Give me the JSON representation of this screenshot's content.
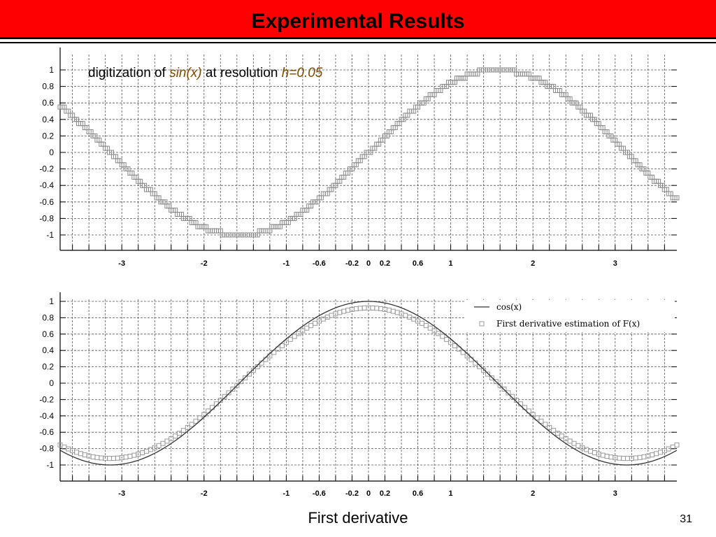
{
  "slide": {
    "title": "Experimental Results",
    "caption": "First derivative",
    "page_number": "31",
    "accent_color": "#ff0000"
  },
  "chart_data": [
    {
      "type": "line",
      "title": "",
      "annotation": {
        "prefix": "digitization of ",
        "func": "sin(x)",
        "middle": " at resolution ",
        "res": "h=0.05"
      },
      "xlabel": "",
      "ylabel": "",
      "xlim": [
        -3.75,
        3.75
      ],
      "ylim": [
        -1.2,
        1.2
      ],
      "x_ticks": [
        -3,
        -2,
        -1,
        -0.6,
        -0.2,
        0,
        0.2,
        0.6,
        1,
        2,
        3
      ],
      "x_tick_labels": [
        "-3",
        "-2",
        "-1",
        "-0.6",
        "-0.2",
        "0",
        "0.2",
        "0.6",
        "1",
        "2",
        "3"
      ],
      "y_ticks": [
        1,
        0.8,
        0.6,
        0.4,
        0.2,
        0,
        -0.2,
        -0.4,
        -0.6,
        -0.8,
        -1
      ],
      "y_tick_labels": [
        "1",
        "0.8",
        "0.6",
        "0.4",
        "0.2",
        "0",
        "-0.2",
        "-0.4",
        "-0.6",
        "-0.8",
        "-1"
      ],
      "grid": true,
      "series": [
        {
          "function": "sin(x)",
          "style": "step-squares",
          "step": 0.05,
          "x_range": [
            -3.75,
            3.75
          ]
        }
      ]
    },
    {
      "type": "line",
      "title": "",
      "xlabel": "",
      "ylabel": "",
      "xlim": [
        -3.75,
        3.75
      ],
      "ylim": [
        -1.1,
        1.0
      ],
      "x_ticks": [
        -3,
        -2,
        -1,
        -0.6,
        -0.2,
        0,
        0.2,
        0.6,
        1,
        2,
        3
      ],
      "x_tick_labels": [
        "-3",
        "-2",
        "-1",
        "-0.6",
        "-0.2",
        "0",
        "0.2",
        "0.6",
        "1",
        "2",
        "3"
      ],
      "y_ticks": [
        1,
        0.8,
        0.6,
        0.4,
        0.2,
        0,
        -0.2,
        -0.4,
        -0.6,
        -0.8,
        -1
      ],
      "y_tick_labels": [
        "1",
        "0.8",
        "0.6",
        "0.4",
        "0.2",
        "0",
        "-0.2",
        "-0.4",
        "-0.6",
        "-0.8",
        "-1"
      ],
      "grid": true,
      "legend_position": "top-right",
      "series": [
        {
          "name": "cos(x)",
          "function": "cos(x)",
          "style": "line"
        },
        {
          "name": "First derivative estimation of F(x)",
          "function": "0.92*cos(x)",
          "style": "squares",
          "step": 0.05
        }
      ]
    }
  ]
}
